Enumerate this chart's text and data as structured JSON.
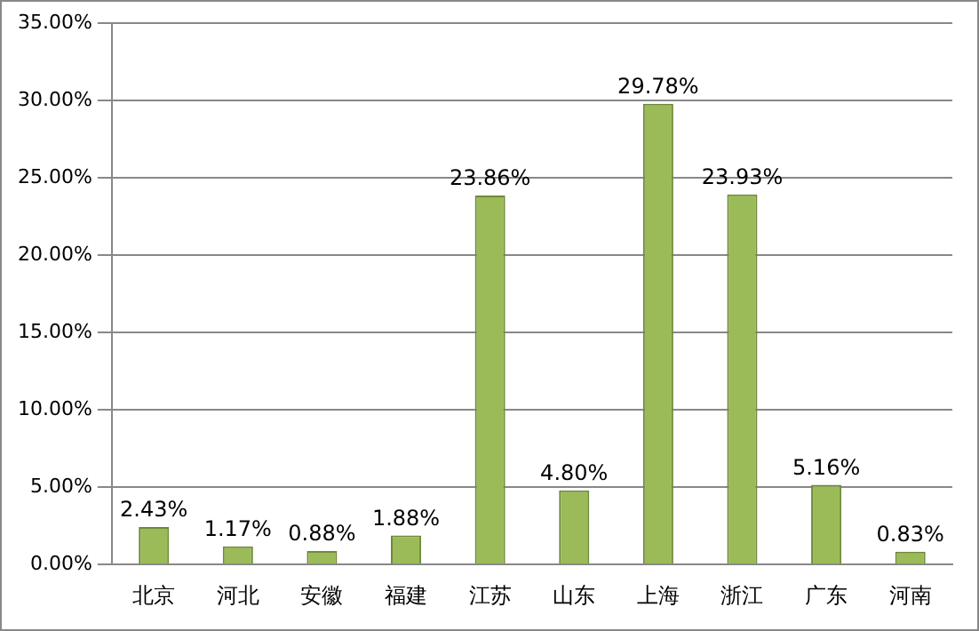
{
  "chart_data": {
    "type": "bar",
    "categories": [
      "北京",
      "河北",
      "安徽",
      "福建",
      "江苏",
      "山东",
      "上海",
      "浙江",
      "广东",
      "河南"
    ],
    "values": [
      2.43,
      1.17,
      0.88,
      1.88,
      23.86,
      4.8,
      29.78,
      23.93,
      5.16,
      0.83
    ],
    "value_labels": [
      "2.43%",
      "1.17%",
      "0.88%",
      "1.88%",
      "23.86%",
      "4.80%",
      "29.78%",
      "23.93%",
      "5.16%",
      "0.83%"
    ],
    "color": "#9bbb59",
    "ylim": [
      0,
      35
    ],
    "yticks": [
      {
        "value": 0,
        "label": "0.00%"
      },
      {
        "value": 5,
        "label": "5.00%"
      },
      {
        "value": 10,
        "label": "10.00%"
      },
      {
        "value": 15,
        "label": "15.00%"
      },
      {
        "value": 20,
        "label": "20.00%"
      },
      {
        "value": 25,
        "label": "25.00%"
      },
      {
        "value": 30,
        "label": "30.00%"
      },
      {
        "value": 35,
        "label": "35.00%"
      }
    ],
    "grid": "y",
    "legend": false
  }
}
